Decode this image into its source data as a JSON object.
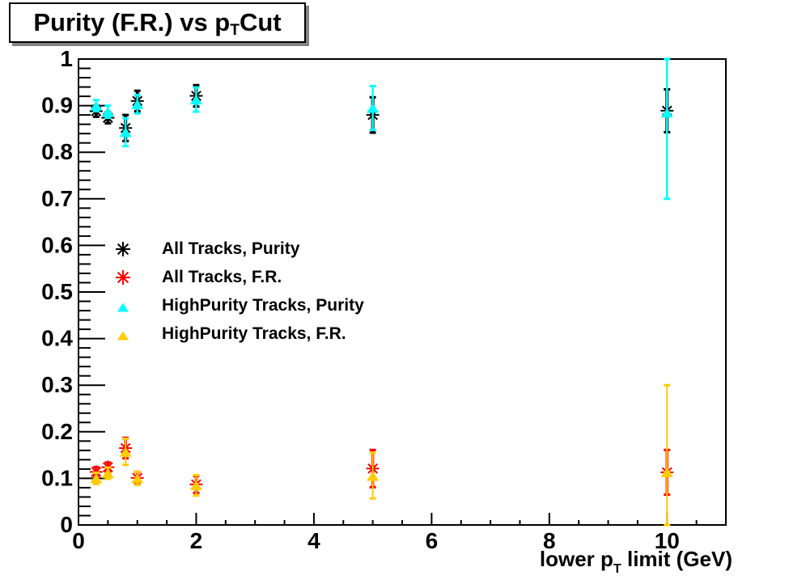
{
  "title": {
    "pre": "Purity (F.R.) vs p",
    "sub": "T",
    "post": " Cut"
  },
  "xaxis_title": {
    "pre": "lower p",
    "sub": "T",
    "post": " limit (GeV)"
  },
  "colors": {
    "background": "#ffffff",
    "frame": "#000000",
    "title_shadow": "#848484",
    "black_series": "#000000",
    "red_series": "#ff0000",
    "cyan_series": "#00ffff",
    "orange_series": "#ffcc00"
  },
  "chart_data": {
    "type": "scatter",
    "title": "Purity (F.R.) vs p_T Cut",
    "xlabel": "lower p_T limit (GeV)",
    "ylabel": "",
    "xlim": [
      0,
      11
    ],
    "ylim": [
      0,
      1
    ],
    "grid": false,
    "legend_position": "center-left",
    "x_ticks": [
      {
        "value": 0,
        "label": "0"
      },
      {
        "value": 2,
        "label": "2"
      },
      {
        "value": 4,
        "label": "4"
      },
      {
        "value": 6,
        "label": "6"
      },
      {
        "value": 8,
        "label": "8"
      },
      {
        "value": 10,
        "label": "10"
      }
    ],
    "x_minor_step": 0.5,
    "y_ticks": [
      {
        "value": 0,
        "label": "0"
      },
      {
        "value": 0.1,
        "label": "0.1"
      },
      {
        "value": 0.2,
        "label": "0.2"
      },
      {
        "value": 0.3,
        "label": "0.3"
      },
      {
        "value": 0.4,
        "label": "0.4"
      },
      {
        "value": 0.5,
        "label": "0.5"
      },
      {
        "value": 0.6,
        "label": "0.6"
      },
      {
        "value": 0.7,
        "label": "0.7"
      },
      {
        "value": 0.8,
        "label": "0.8"
      },
      {
        "value": 0.9,
        "label": "0.9"
      },
      {
        "value": 1,
        "label": "1"
      }
    ],
    "y_minor_step": 0.02,
    "series": [
      {
        "name": "All Tracks, Purity",
        "marker": "star",
        "color": "#000000",
        "line_width": 4,
        "points": [
          {
            "x": 0.3,
            "y": 0.888,
            "ey_low": 0.012,
            "ey_high": 0.012
          },
          {
            "x": 0.5,
            "y": 0.874,
            "ey_low": 0.012,
            "ey_high": 0.012
          },
          {
            "x": 0.8,
            "y": 0.852,
            "ey_low": 0.028,
            "ey_high": 0.028
          },
          {
            "x": 1.0,
            "y": 0.91,
            "ey_low": 0.022,
            "ey_high": 0.022
          },
          {
            "x": 2.0,
            "y": 0.921,
            "ey_low": 0.023,
            "ey_high": 0.023
          },
          {
            "x": 5.0,
            "y": 0.88,
            "ey_low": 0.038,
            "ey_high": 0.038
          },
          {
            "x": 10.0,
            "y": 0.889,
            "ey_low": 0.046,
            "ey_high": 0.046
          }
        ]
      },
      {
        "name": "All Tracks, F.R.",
        "marker": "star",
        "color": "#ff0000",
        "line_width": 3.5,
        "points": [
          {
            "x": 0.3,
            "y": 0.114,
            "ey_low": 0.01,
            "ey_high": 0.01
          },
          {
            "x": 0.5,
            "y": 0.124,
            "ey_low": 0.01,
            "ey_high": 0.01
          },
          {
            "x": 0.8,
            "y": 0.165,
            "ey_low": 0.022,
            "ey_high": 0.022
          },
          {
            "x": 1.0,
            "y": 0.101,
            "ey_low": 0.013,
            "ey_high": 0.013
          },
          {
            "x": 2.0,
            "y": 0.087,
            "ey_low": 0.018,
            "ey_high": 0.018
          },
          {
            "x": 5.0,
            "y": 0.121,
            "ey_low": 0.04,
            "ey_high": 0.04
          },
          {
            "x": 10.0,
            "y": 0.113,
            "ey_low": 0.048,
            "ey_high": 0.048
          }
        ]
      },
      {
        "name": "HighPurity Tracks, Purity",
        "marker": "triangle",
        "color": "#00ffff",
        "line_width": 2.5,
        "points": [
          {
            "x": 0.3,
            "y": 0.9,
            "ey_low": 0.012,
            "ey_high": 0.012
          },
          {
            "x": 0.5,
            "y": 0.887,
            "ey_low": 0.013,
            "ey_high": 0.013
          },
          {
            "x": 0.8,
            "y": 0.843,
            "ey_low": 0.03,
            "ey_high": 0.03
          },
          {
            "x": 1.0,
            "y": 0.903,
            "ey_low": 0.02,
            "ey_high": 0.02
          },
          {
            "x": 2.0,
            "y": 0.913,
            "ey_low": 0.026,
            "ey_high": 0.026
          },
          {
            "x": 5.0,
            "y": 0.895,
            "ey_low": 0.047,
            "ey_high": 0.047
          },
          {
            "x": 10.0,
            "y": 0.885,
            "ey_low": 0.185,
            "ey_high": 0.115
          }
        ]
      },
      {
        "name": "HighPurity Tracks, F.R.",
        "marker": "triangle",
        "color": "#ffcc00",
        "line_width": 2,
        "points": [
          {
            "x": 0.3,
            "y": 0.1,
            "ey_low": 0.012,
            "ey_high": 0.012
          },
          {
            "x": 0.5,
            "y": 0.111,
            "ey_low": 0.012,
            "ey_high": 0.012
          },
          {
            "x": 0.8,
            "y": 0.157,
            "ey_low": 0.028,
            "ey_high": 0.028
          },
          {
            "x": 1.0,
            "y": 0.1,
            "ey_low": 0.014,
            "ey_high": 0.014
          },
          {
            "x": 2.0,
            "y": 0.085,
            "ey_low": 0.022,
            "ey_high": 0.022
          },
          {
            "x": 5.0,
            "y": 0.105,
            "ey_low": 0.048,
            "ey_high": 0.05
          },
          {
            "x": 10.0,
            "y": 0.113,
            "ey_low": 0.113,
            "ey_high": 0.187
          }
        ]
      }
    ]
  }
}
